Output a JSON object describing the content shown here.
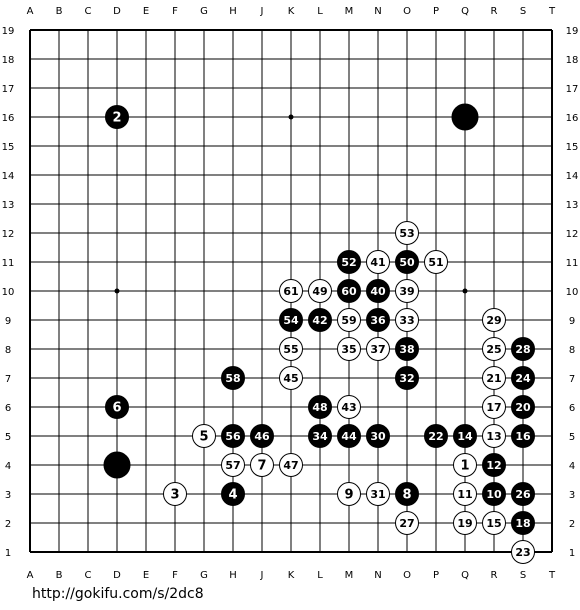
{
  "board": {
    "size": 19,
    "columns": [
      "A",
      "B",
      "C",
      "D",
      "E",
      "F",
      "G",
      "H",
      "J",
      "K",
      "L",
      "M",
      "N",
      "O",
      "P",
      "Q",
      "R",
      "S",
      "T"
    ],
    "rows": [
      "19",
      "18",
      "17",
      "16",
      "15",
      "14",
      "13",
      "12",
      "11",
      "10",
      "9",
      "8",
      "7",
      "6",
      "5",
      "4",
      "3",
      "2",
      "1"
    ],
    "hoshi": [
      "D16",
      "K16",
      "Q16",
      "D10",
      "Q10"
    ],
    "stones": [
      {
        "color": "black",
        "point": "D16",
        "label": "2"
      },
      {
        "color": "black",
        "point": "Q16",
        "label": ""
      },
      {
        "color": "white",
        "point": "O12",
        "label": "53"
      },
      {
        "color": "black",
        "point": "M11",
        "label": "52"
      },
      {
        "color": "white",
        "point": "N11",
        "label": "41"
      },
      {
        "color": "black",
        "point": "O11",
        "label": "50"
      },
      {
        "color": "white",
        "point": "P11",
        "label": "51"
      },
      {
        "color": "white",
        "point": "K10",
        "label": "61"
      },
      {
        "color": "white",
        "point": "L10",
        "label": "49"
      },
      {
        "color": "black",
        "point": "M10",
        "label": "60"
      },
      {
        "color": "black",
        "point": "N10",
        "label": "40"
      },
      {
        "color": "white",
        "point": "O10",
        "label": "39"
      },
      {
        "color": "black",
        "point": "K9",
        "label": "54"
      },
      {
        "color": "black",
        "point": "L9",
        "label": "42"
      },
      {
        "color": "white",
        "point": "M9",
        "label": "59"
      },
      {
        "color": "black",
        "point": "N9",
        "label": "36"
      },
      {
        "color": "white",
        "point": "O9",
        "label": "33"
      },
      {
        "color": "white",
        "point": "R9",
        "label": "29"
      },
      {
        "color": "white",
        "point": "K8",
        "label": "55"
      },
      {
        "color": "white",
        "point": "M8",
        "label": "35"
      },
      {
        "color": "white",
        "point": "N8",
        "label": "37"
      },
      {
        "color": "black",
        "point": "O8",
        "label": "38"
      },
      {
        "color": "white",
        "point": "R8",
        "label": "25"
      },
      {
        "color": "black",
        "point": "S8",
        "label": "28"
      },
      {
        "color": "black",
        "point": "H7",
        "label": "58"
      },
      {
        "color": "white",
        "point": "K7",
        "label": "45"
      },
      {
        "color": "black",
        "point": "O7",
        "label": "32"
      },
      {
        "color": "white",
        "point": "R7",
        "label": "21"
      },
      {
        "color": "black",
        "point": "S7",
        "label": "24"
      },
      {
        "color": "black",
        "point": "D6",
        "label": "6"
      },
      {
        "color": "black",
        "point": "L6",
        "label": "48"
      },
      {
        "color": "white",
        "point": "M6",
        "label": "43"
      },
      {
        "color": "white",
        "point": "R6",
        "label": "17"
      },
      {
        "color": "black",
        "point": "S6",
        "label": "20"
      },
      {
        "color": "white",
        "point": "G5",
        "label": "5"
      },
      {
        "color": "black",
        "point": "H5",
        "label": "56"
      },
      {
        "color": "black",
        "point": "J5",
        "label": "46"
      },
      {
        "color": "black",
        "point": "L5",
        "label": "34"
      },
      {
        "color": "black",
        "point": "M5",
        "label": "44"
      },
      {
        "color": "black",
        "point": "N5",
        "label": "30"
      },
      {
        "color": "black",
        "point": "P5",
        "label": "22"
      },
      {
        "color": "black",
        "point": "Q5",
        "label": "14"
      },
      {
        "color": "white",
        "point": "R5",
        "label": "13"
      },
      {
        "color": "black",
        "point": "S5",
        "label": "16"
      },
      {
        "color": "black",
        "point": "D4",
        "label": ""
      },
      {
        "color": "white",
        "point": "H4",
        "label": "57"
      },
      {
        "color": "white",
        "point": "J4",
        "label": "7"
      },
      {
        "color": "white",
        "point": "K4",
        "label": "47"
      },
      {
        "color": "white",
        "point": "Q4",
        "label": "1"
      },
      {
        "color": "black",
        "point": "R4",
        "label": "12"
      },
      {
        "color": "white",
        "point": "F3",
        "label": "3"
      },
      {
        "color": "black",
        "point": "H3",
        "label": "4"
      },
      {
        "color": "white",
        "point": "M3",
        "label": "9"
      },
      {
        "color": "white",
        "point": "N3",
        "label": "31"
      },
      {
        "color": "black",
        "point": "O3",
        "label": "8"
      },
      {
        "color": "white",
        "point": "Q3",
        "label": "11"
      },
      {
        "color": "black",
        "point": "R3",
        "label": "10"
      },
      {
        "color": "black",
        "point": "S3",
        "label": "26"
      },
      {
        "color": "white",
        "point": "O2",
        "label": "27"
      },
      {
        "color": "white",
        "point": "Q2",
        "label": "19"
      },
      {
        "color": "white",
        "point": "R2",
        "label": "15"
      },
      {
        "color": "black",
        "point": "S2",
        "label": "18"
      },
      {
        "color": "white",
        "point": "S1",
        "label": "23"
      }
    ]
  },
  "footer": {
    "url": "http://gokifu.com/s/2dc8"
  }
}
